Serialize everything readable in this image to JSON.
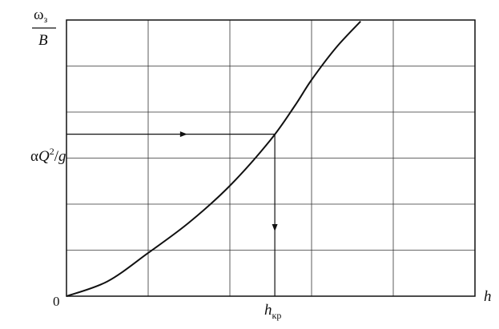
{
  "chart_data": {
    "type": "line",
    "ylabel": {
      "numerator": "ω",
      "numerator_sub": "з",
      "denominator": "B"
    },
    "xlabel": "h",
    "origin_label": "0",
    "annotations": {
      "y_marker": {
        "pre": "α",
        "var": "Q",
        "sup": "2",
        "post": "/",
        "var2": "g"
      },
      "x_marker": {
        "var": "h",
        "sub": "кр"
      }
    },
    "grid": true,
    "grid_x_divisions": 5,
    "grid_y_divisions": 6,
    "xlim": [
      0,
      5
    ],
    "ylim": [
      0,
      6
    ],
    "series": [
      {
        "x": [
          0,
          0.5,
          1.0,
          1.5,
          2.0,
          2.5,
          2.8,
          3.0,
          3.3,
          3.6
        ],
        "y": [
          0,
          0.32,
          0.94,
          1.6,
          2.4,
          3.4,
          4.15,
          4.7,
          5.4,
          5.97
        ]
      }
    ],
    "marker_point": {
      "x": 2.55,
      "y": 3.52
    }
  }
}
